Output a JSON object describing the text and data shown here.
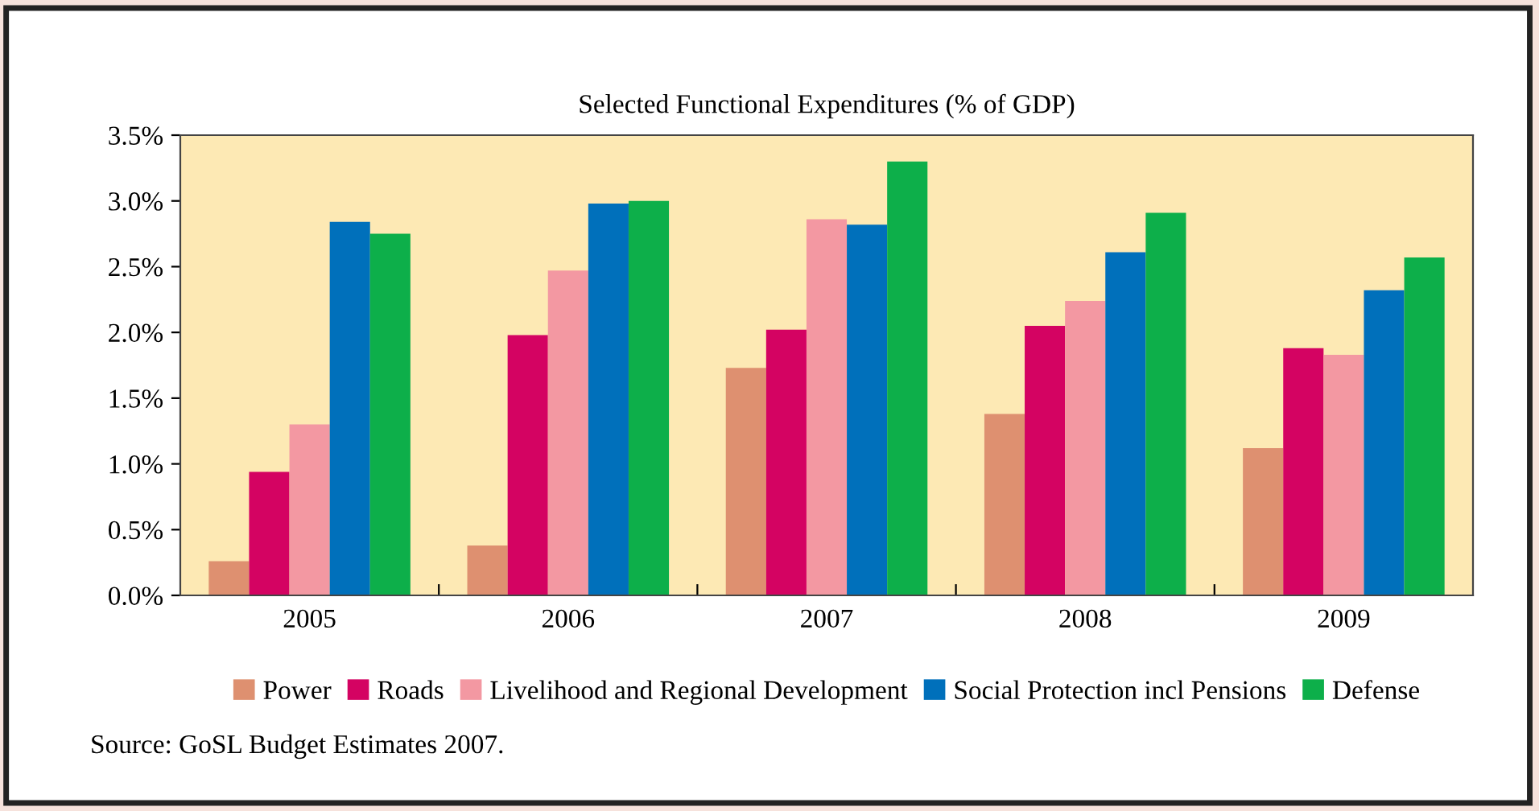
{
  "chart_data": {
    "type": "bar",
    "title": "Selected Functional Expenditures (% of GDP)",
    "categories": [
      "2005",
      "2006",
      "2007",
      "2008",
      "2009"
    ],
    "series": [
      {
        "name": "Power",
        "color": "#de9070",
        "values": [
          0.26,
          0.38,
          1.73,
          1.38,
          1.12
        ]
      },
      {
        "name": "Roads",
        "color": "#d40362",
        "values": [
          0.94,
          1.98,
          2.02,
          2.05,
          1.88
        ]
      },
      {
        "name": "Livelihood and Regional Development",
        "color": "#f398a2",
        "values": [
          1.3,
          2.47,
          2.86,
          2.24,
          1.83
        ]
      },
      {
        "name": "Social Protection incl Pensions",
        "color": "#0070bb",
        "values": [
          2.84,
          2.98,
          2.82,
          2.61,
          2.32
        ]
      },
      {
        "name": "Defense",
        "color": "#0daf4a",
        "values": [
          2.75,
          3.0,
          3.3,
          2.91,
          2.57
        ]
      }
    ],
    "ylim": [
      0,
      3.5
    ],
    "yticks": [
      {
        "value": 0,
        "label": "0.0%"
      },
      {
        "value": 0.5,
        "label": "0.5%"
      },
      {
        "value": 1.0,
        "label": "1.0%"
      },
      {
        "value": 1.5,
        "label": "1.5%"
      },
      {
        "value": 2.0,
        "label": "2.0%"
      },
      {
        "value": 2.5,
        "label": "2.5%"
      },
      {
        "value": 3.0,
        "label": "3.0%"
      },
      {
        "value": 3.5,
        "label": "3.5%"
      }
    ],
    "grid": false,
    "legend": "bottom",
    "annotations": [
      "Source: GoSL Budget Estimates 2007."
    ]
  }
}
